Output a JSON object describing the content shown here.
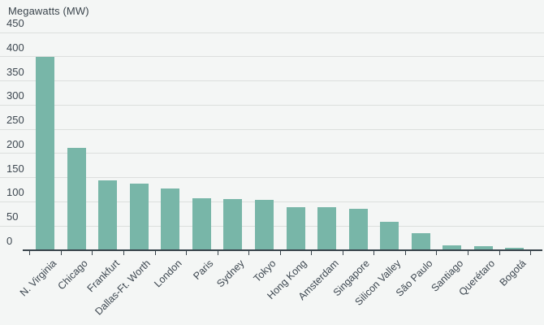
{
  "chart_data": {
    "type": "bar",
    "title": "Megawatts (MW)",
    "categories": [
      "N. Virginia",
      "Chicago",
      "Frankfurt",
      "Dallas-Ft. Worth",
      "London",
      "Paris",
      "Sydney",
      "Tokyo",
      "Hong Kong",
      "Amsterdam",
      "Singapore",
      "Silicon Valley",
      "São Paulo",
      "Santiago",
      "Querétaro",
      "Bogotá"
    ],
    "values": [
      400,
      212,
      145,
      137,
      128,
      107,
      105,
      104,
      89,
      89,
      86,
      58,
      36,
      10,
      9,
      5
    ],
    "xlabel": "",
    "ylabel": "",
    "y_ticks": [
      450,
      400,
      350,
      300,
      250,
      200,
      150,
      100,
      50,
      0
    ],
    "ylim": [
      0,
      450
    ],
    "grid": "horizontal",
    "legend": "none",
    "bar_color": "#78b6a8",
    "background_color": "#f4f6f5",
    "gridline_color": "#dcdfdd",
    "axis_color": "#38434b",
    "text_color": "#3d4750"
  }
}
